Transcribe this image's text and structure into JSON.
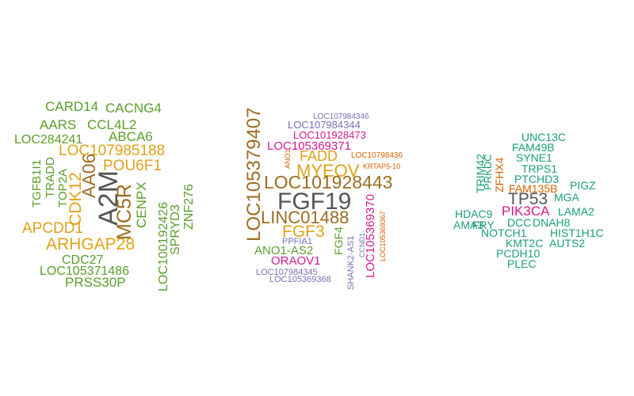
{
  "palette": {
    "green": "#5a9e2a",
    "gold": "#e0a21a",
    "gray": "#555555",
    "brown": "#9a6d22",
    "purple": "#7470b2",
    "magenta": "#d21a8c",
    "orange": "#d95f02",
    "teal": "#1b9e77"
  },
  "clouds": [
    {
      "words": [
        {
          "text": "CARD14",
          "color": "green"
        },
        {
          "text": "CACNG4",
          "color": "green"
        },
        {
          "text": "AARS",
          "color": "green"
        },
        {
          "text": "CCL4L2",
          "color": "green"
        },
        {
          "text": "LOC284241",
          "color": "green"
        },
        {
          "text": "ABCA6",
          "color": "green"
        },
        {
          "text": "LOC107985188",
          "color": "gold"
        },
        {
          "text": "TGFB1I1",
          "color": "green"
        },
        {
          "text": "TRADD",
          "color": "green"
        },
        {
          "text": "TOP2A",
          "color": "green"
        },
        {
          "text": "CDK12",
          "color": "gold"
        },
        {
          "text": "AA06",
          "color": "brown"
        },
        {
          "text": "A2M",
          "color": "gray"
        },
        {
          "text": "MC5R",
          "color": "brown"
        },
        {
          "text": "POU6F1",
          "color": "gold"
        },
        {
          "text": "CENPX",
          "color": "green"
        },
        {
          "text": "LOC100192426",
          "color": "green"
        },
        {
          "text": "SPRYD3",
          "color": "green"
        },
        {
          "text": "ZNF276",
          "color": "green"
        },
        {
          "text": "APCDD1",
          "color": "gold"
        },
        {
          "text": "ARHGAP28",
          "color": "gold"
        },
        {
          "text": "CDC27",
          "color": "green"
        },
        {
          "text": "LOC105371486",
          "color": "green"
        },
        {
          "text": "PRSS30P",
          "color": "green"
        }
      ]
    },
    {
      "words": [
        {
          "text": "LOC107984346",
          "color": "purple"
        },
        {
          "text": "LOC107984344",
          "color": "purple"
        },
        {
          "text": "LOC101928473",
          "color": "magenta"
        },
        {
          "text": "LOC105369371",
          "color": "magenta"
        },
        {
          "text": "LOC105379407",
          "color": "brown"
        },
        {
          "text": "ANO1",
          "color": "orange"
        },
        {
          "text": "FADD",
          "color": "gold"
        },
        {
          "text": "LOC10798436",
          "color": "orange"
        },
        {
          "text": "MYEOV",
          "color": "gold"
        },
        {
          "text": "KRTAP5-10",
          "color": "orange"
        },
        {
          "text": "LOC101928443",
          "color": "brown"
        },
        {
          "text": "FGF19",
          "color": "gray"
        },
        {
          "text": "LINC01488",
          "color": "brown"
        },
        {
          "text": "FGF3",
          "color": "gold"
        },
        {
          "text": "PPFIA1",
          "color": "purple"
        },
        {
          "text": "ANO1-AS2",
          "color": "green"
        },
        {
          "text": "ORAOV1",
          "color": "magenta"
        },
        {
          "text": "LOC107984345",
          "color": "purple"
        },
        {
          "text": "LOC105369368",
          "color": "purple"
        },
        {
          "text": "FGF4",
          "color": "green"
        },
        {
          "text": "SHANK2-AS1",
          "color": "purple"
        },
        {
          "text": "CCND1",
          "color": "purple"
        },
        {
          "text": "LOC105369370",
          "color": "magenta"
        },
        {
          "text": "LOC105369367",
          "color": "orange"
        }
      ]
    },
    {
      "words": [
        {
          "text": "UNC13C",
          "color": "teal"
        },
        {
          "text": "FAM49B",
          "color": "teal"
        },
        {
          "text": "SYNE1",
          "color": "teal"
        },
        {
          "text": "TRPS1",
          "color": "teal"
        },
        {
          "text": "PTCHD3",
          "color": "teal"
        },
        {
          "text": "PIGZ",
          "color": "teal"
        },
        {
          "text": "TRIM42",
          "color": "teal"
        },
        {
          "text": "PRKDC",
          "color": "teal"
        },
        {
          "text": "ZFHX4",
          "color": "orange"
        },
        {
          "text": "FAM135B",
          "color": "orange"
        },
        {
          "text": "TP53",
          "color": "gray"
        },
        {
          "text": "MGA",
          "color": "teal"
        },
        {
          "text": "HDAC9",
          "color": "teal"
        },
        {
          "text": "PIK3CA",
          "color": "magenta"
        },
        {
          "text": "LAMA2",
          "color": "teal"
        },
        {
          "text": "FRY",
          "color": "teal"
        },
        {
          "text": "AMA3",
          "color": "teal"
        },
        {
          "text": "DCC",
          "color": "teal"
        },
        {
          "text": "DNAH8",
          "color": "teal"
        },
        {
          "text": "NOTCH1",
          "color": "teal"
        },
        {
          "text": "HIST1H1C",
          "color": "teal"
        },
        {
          "text": "KMT2C",
          "color": "teal"
        },
        {
          "text": "AUTS2",
          "color": "teal"
        },
        {
          "text": "PCDH10",
          "color": "teal"
        },
        {
          "text": "PLEC",
          "color": "teal"
        }
      ]
    }
  ]
}
